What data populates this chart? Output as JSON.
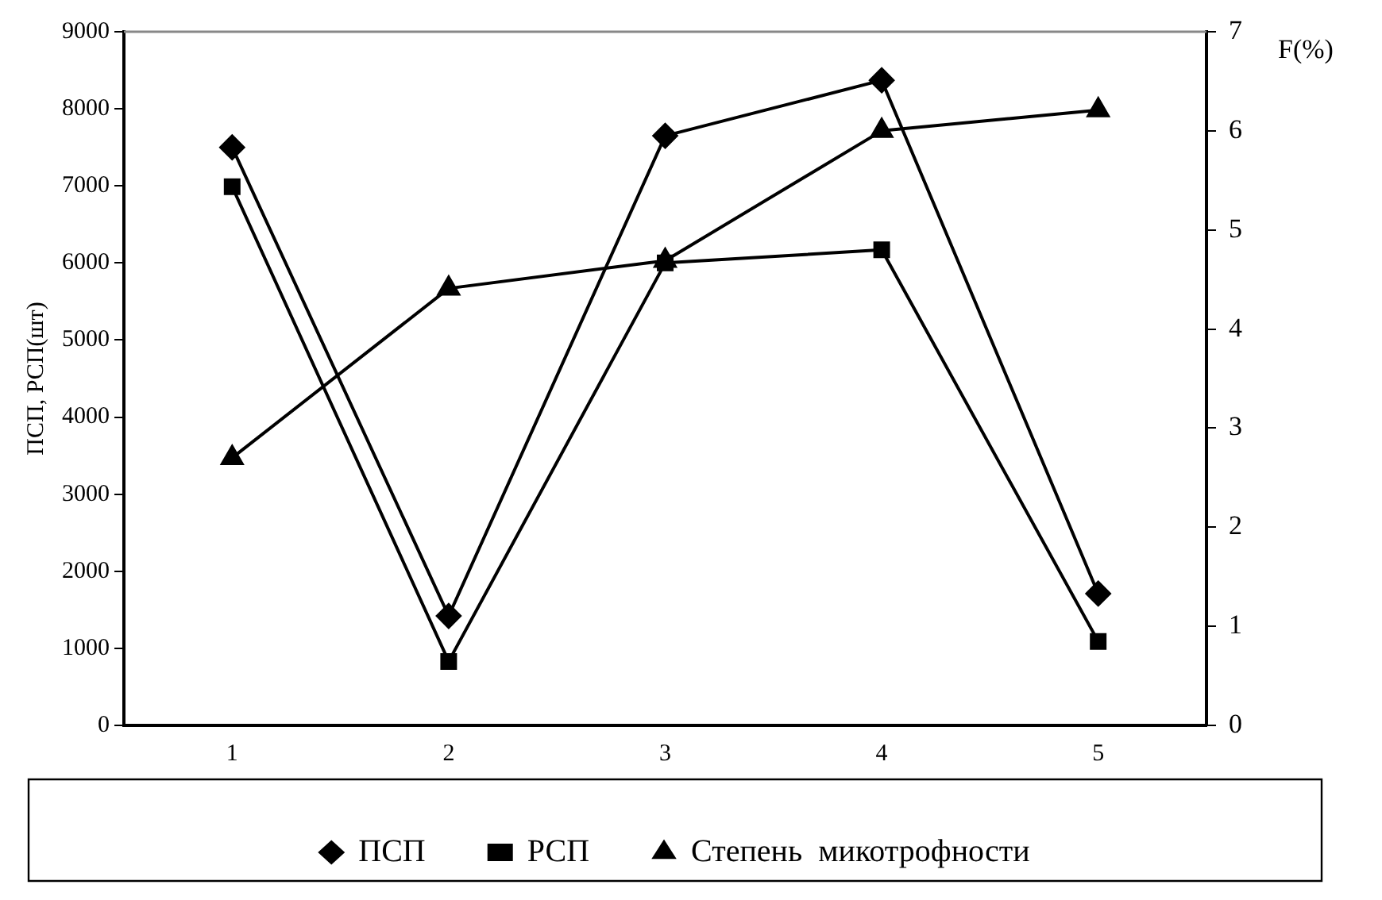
{
  "chart_data": {
    "type": "line",
    "ylabel": "ПСП, РСП(шт)",
    "y2label": "F(%)",
    "categories": [
      "1",
      "2",
      "3",
      "4",
      "5"
    ],
    "series": [
      {
        "name": "ПСП",
        "color": "#000000",
        "marker": "diamond",
        "values": [
          7500,
          1420,
          7650,
          8370,
          1710
        ]
      },
      {
        "name": "РСП",
        "color": "#000000",
        "marker": "square",
        "values": [
          6990,
          830,
          6000,
          6170,
          1090
        ]
      },
      {
        "name": "Степень  микотрофности",
        "color": "#000000",
        "marker": "triangle",
        "axis": "y2",
        "values": [
          2.7,
          4.41,
          4.69,
          6.0,
          6.21
        ]
      }
    ],
    "ylim": [
      0,
      9000
    ],
    "yticks": [
      0,
      1000,
      2000,
      3000,
      4000,
      5000,
      6000,
      7000,
      8000,
      9000
    ],
    "y2lim": [
      0,
      7
    ],
    "y2ticks": [
      0,
      1,
      2,
      3,
      4,
      5,
      6,
      7
    ],
    "grid": false,
    "legend": "bottom",
    "line_style": "solid"
  }
}
